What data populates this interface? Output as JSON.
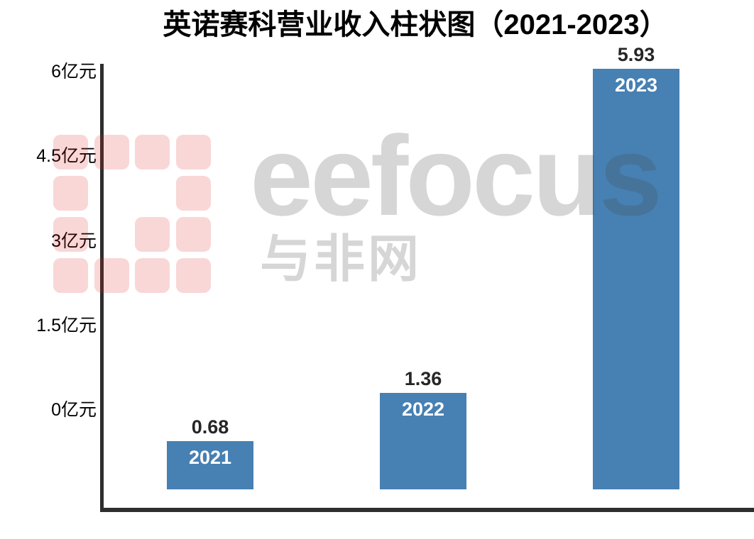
{
  "chart_data": {
    "type": "bar",
    "title": "英诺赛科营业收入柱状图（2021-2023）",
    "categories": [
      "2021",
      "2022",
      "2023"
    ],
    "values": [
      0.68,
      1.36,
      5.93
    ],
    "value_labels": [
      "0.68",
      "1.36",
      "5.93"
    ],
    "unit": "亿元",
    "xlabel": "",
    "ylabel": "",
    "ylim": [
      0,
      6
    ],
    "y_ticks": [
      0,
      1.5,
      3,
      4.5,
      6
    ],
    "y_tick_labels": [
      "0亿元",
      "1.5亿元",
      "3亿元",
      "4.5亿元",
      "6亿元"
    ],
    "grid": "off",
    "legend": "none",
    "bar_color": "#4780b2",
    "bar_year_label_color": "#ffffff",
    "value_label_color": "#262626",
    "axis_color": "#2e2e2e",
    "title_color": "#000000"
  },
  "watermark": {
    "brand": "eefocus",
    "site": "与非网",
    "text_color": "rgba(70,70,70,0.22)",
    "logo_color": "rgba(224,32,32,0.18)",
    "logo_pattern": [
      [
        1,
        1,
        1,
        1
      ],
      [
        1,
        0,
        0,
        1
      ],
      [
        1,
        0,
        1,
        1
      ],
      [
        1,
        1,
        1,
        1
      ]
    ]
  }
}
